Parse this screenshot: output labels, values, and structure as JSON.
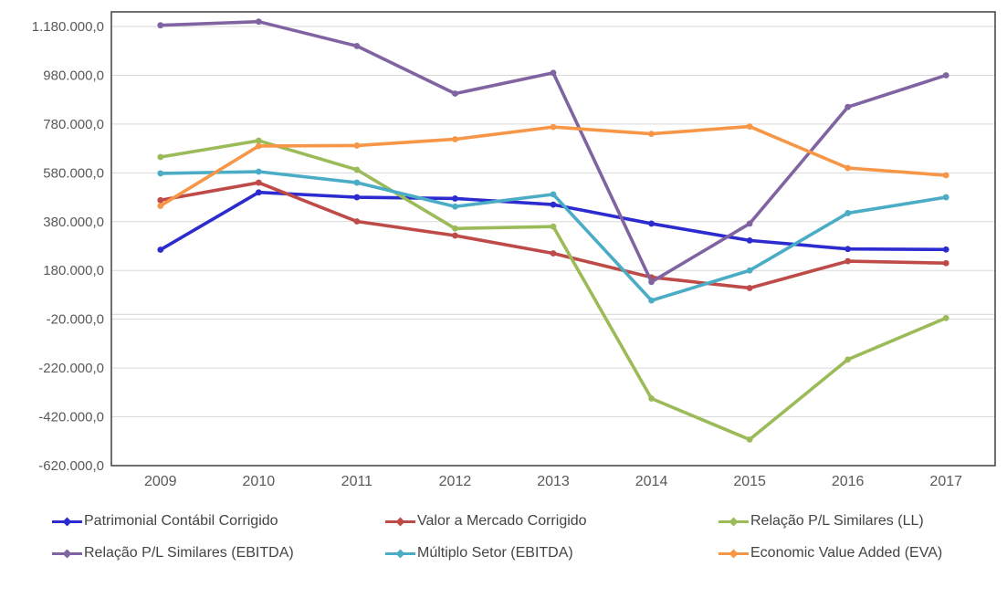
{
  "chart_data": {
    "type": "line",
    "categories": [
      "2009",
      "2010",
      "2011",
      "2012",
      "2013",
      "2014",
      "2015",
      "2016",
      "2017"
    ],
    "series": [
      {
        "name": "Patrimonial Contábil Corrigido",
        "color": "#2B2BCF",
        "values": [
          265000,
          500000,
          480000,
          475000,
          450000,
          372000,
          303000,
          268000,
          266000
        ]
      },
      {
        "name": "Valor a Mercado Corrigido",
        "color": "#BE4B48",
        "values": [
          468000,
          540000,
          381000,
          323000,
          250000,
          152000,
          108000,
          218000,
          210000
        ]
      },
      {
        "name": "Relação P/L Similares (LL)",
        "color": "#9BBB59",
        "values": [
          645000,
          712000,
          593000,
          352000,
          360000,
          -345000,
          -513000,
          -185000,
          -15000
        ]
      },
      {
        "name": "Relação P/L Similares (EBITDA)",
        "color": "#8064A2",
        "values": [
          1185000,
          1200000,
          1100000,
          905000,
          990000,
          133000,
          372000,
          850000,
          980000
        ]
      },
      {
        "name": "Múltiplo Setor (EBITDA)",
        "color": "#4BACC6",
        "values": [
          578000,
          585000,
          540000,
          442000,
          492000,
          57000,
          180000,
          415000,
          480000
        ]
      },
      {
        "name": "Economic Value Added (EVA)",
        "color": "#F79646",
        "values": [
          445000,
          690000,
          692000,
          718000,
          768000,
          740000,
          770000,
          600000,
          570000
        ]
      }
    ],
    "ylim": [
      -620000,
      1240000
    ],
    "yticks": [
      {
        "value": 1180000,
        "label": "1.180.000,0"
      },
      {
        "value": 980000,
        "label": "980.000,0"
      },
      {
        "value": 780000,
        "label": "780.000,0"
      },
      {
        "value": 580000,
        "label": "580.000,0"
      },
      {
        "value": 380000,
        "label": "380.000,0"
      },
      {
        "value": 180000,
        "label": "180.000,0"
      },
      {
        "value": -20000,
        "label": "-20.000,0"
      },
      {
        "value": -220000,
        "label": "-220.000,0"
      },
      {
        "value": -420000,
        "label": "-420.000,0"
      },
      {
        "value": -620000,
        "label": "-620.000,0"
      }
    ],
    "grid": true,
    "zero_line": true,
    "legend_position": "bottom",
    "colors": {
      "gridline": "#D9D9D9",
      "plot_border": "#4D4D4D",
      "tick_text": "#595959",
      "legend_text": "#444444",
      "background": "#FFFFFF"
    }
  }
}
